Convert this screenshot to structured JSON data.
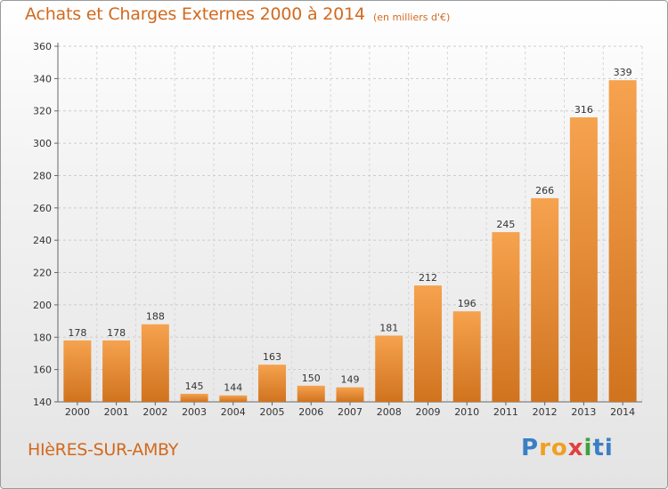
{
  "title": "Achats et Charges Externes 2000 à 2014",
  "subtitle": "(en milliers d'€)",
  "commune": "HIèRES-SUR-AMBY",
  "logo": {
    "text": "Proxiti",
    "parts": [
      "P",
      "ro",
      "x",
      "i",
      "ti"
    ]
  },
  "colors": {
    "bar_light": "#f6a24e",
    "bar_dark": "#d0731f",
    "text_accent": "#d2691e",
    "axis": "#666666"
  },
  "chart_data": {
    "type": "bar",
    "categories": [
      "2000",
      "2001",
      "2002",
      "2003",
      "2004",
      "2005",
      "2006",
      "2007",
      "2008",
      "2009",
      "2010",
      "2011",
      "2012",
      "2013",
      "2014"
    ],
    "values": [
      178,
      178,
      188,
      145,
      144,
      163,
      150,
      149,
      181,
      212,
      196,
      245,
      266,
      316,
      339
    ],
    "ylim": [
      140,
      360
    ],
    "yticks": [
      140,
      160,
      180,
      200,
      220,
      240,
      260,
      280,
      300,
      320,
      340,
      360
    ],
    "grid": true,
    "data_labels": true
  }
}
